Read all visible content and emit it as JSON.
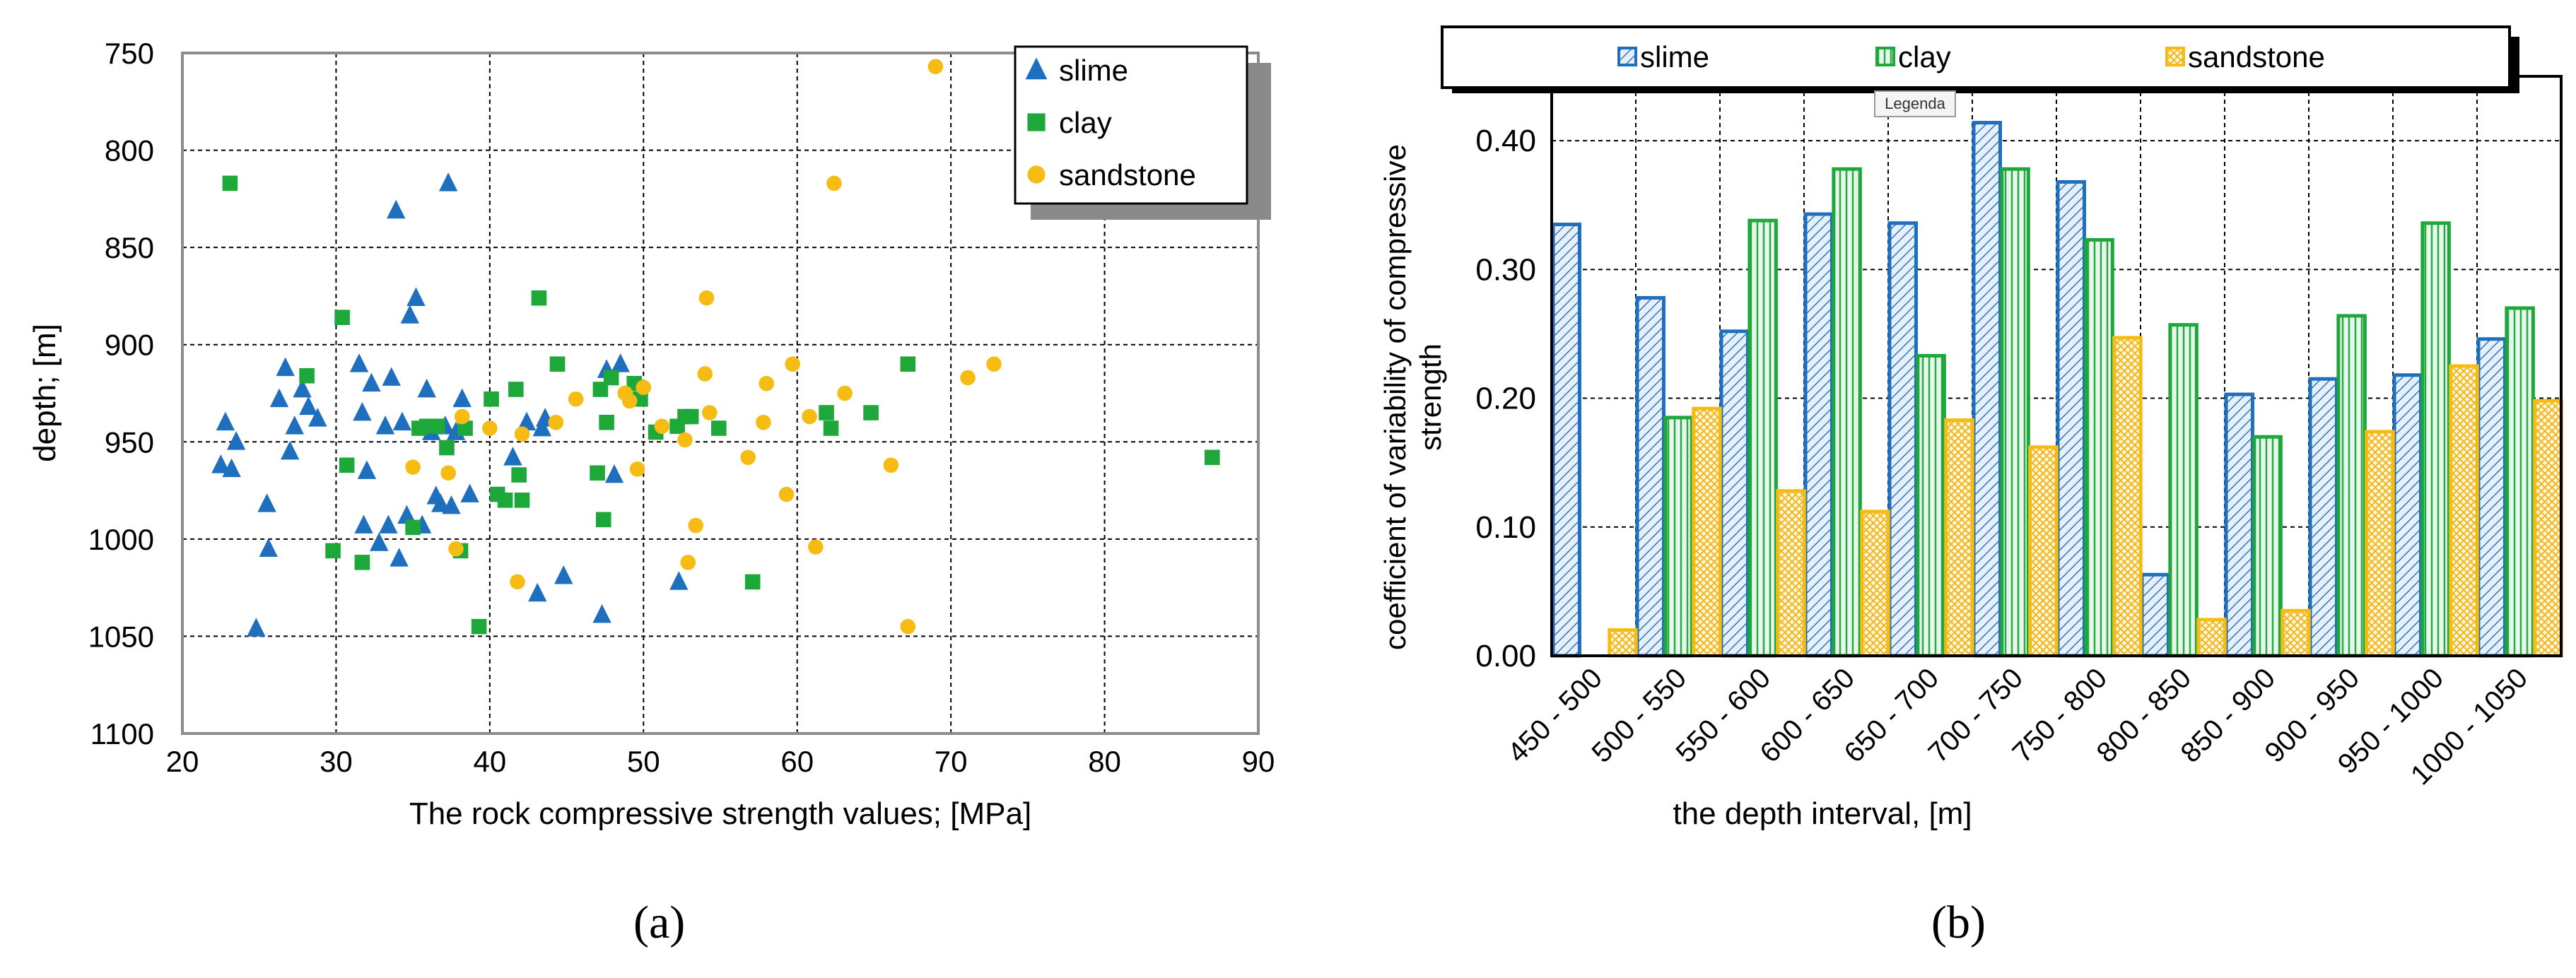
{
  "panel_a": {
    "caption": "(a)",
    "chart_data": {
      "type": "scatter",
      "title": "",
      "xlabel": "The rock compressive strength values; [MPa]",
      "ylabel": "depth; [m]",
      "xlim": [
        20,
        90
      ],
      "ylim": [
        750,
        1100
      ],
      "y_inverted": true,
      "x_ticks": [
        20,
        30,
        40,
        50,
        60,
        70,
        80,
        90
      ],
      "y_ticks": [
        750,
        800,
        850,
        900,
        950,
        1000,
        1050,
        1100
      ],
      "grid": true,
      "legend_position": "top-right",
      "series": [
        {
          "name": "slime",
          "marker": "triangle",
          "color": "#1f6fbf",
          "points": [
            [
              22.5,
              962
            ],
            [
              22.8,
              940
            ],
            [
              23.2,
              964
            ],
            [
              23.5,
              950
            ],
            [
              24.8,
              1046
            ],
            [
              25.5,
              982
            ],
            [
              25.6,
              1005
            ],
            [
              26.3,
              928
            ],
            [
              26.7,
              912
            ],
            [
              27,
              955
            ],
            [
              27.3,
              942
            ],
            [
              27.8,
              923
            ],
            [
              28.2,
              932
            ],
            [
              28.8,
              938
            ],
            [
              31.5,
              910
            ],
            [
              31.7,
              935
            ],
            [
              31.8,
              993
            ],
            [
              32,
              965
            ],
            [
              32.3,
              920
            ],
            [
              32.8,
              1002
            ],
            [
              33.2,
              942
            ],
            [
              33.4,
              993
            ],
            [
              33.6,
              917
            ],
            [
              33.9,
              831
            ],
            [
              34.1,
              1010
            ],
            [
              34.3,
              940
            ],
            [
              34.6,
              988
            ],
            [
              34.8,
              885
            ],
            [
              35.2,
              876
            ],
            [
              35.6,
              993
            ],
            [
              35.9,
              923
            ],
            [
              36.2,
              945
            ],
            [
              36.5,
              978
            ],
            [
              36.8,
              982
            ],
            [
              37.1,
              942
            ],
            [
              37.3,
              817
            ],
            [
              37.5,
              983
            ],
            [
              37.8,
              945
            ],
            [
              38.2,
              928
            ],
            [
              38.7,
              977
            ],
            [
              41.5,
              958
            ],
            [
              42.4,
              940
            ],
            [
              43.1,
              1028
            ],
            [
              43.4,
              943
            ],
            [
              43.6,
              938
            ],
            [
              44.8,
              1019
            ],
            [
              47.3,
              1039
            ],
            [
              47.6,
              913
            ],
            [
              48.1,
              967
            ],
            [
              48.5,
              910
            ],
            [
              52.3,
              1022
            ]
          ]
        },
        {
          "name": "clay",
          "marker": "square",
          "color": "#1ea83a",
          "points": [
            [
              23.1,
              817
            ],
            [
              28.1,
              916
            ],
            [
              29.8,
              1006
            ],
            [
              30.4,
              886
            ],
            [
              30.7,
              962
            ],
            [
              31.7,
              1012
            ],
            [
              35,
              994
            ],
            [
              35.4,
              943
            ],
            [
              35.9,
              942
            ],
            [
              36.6,
              942
            ],
            [
              37.2,
              953
            ],
            [
              38.1,
              1006
            ],
            [
              38.4,
              943
            ],
            [
              39.3,
              1045
            ],
            [
              40.1,
              928
            ],
            [
              40.5,
              977
            ],
            [
              41,
              980
            ],
            [
              41.7,
              923
            ],
            [
              41.9,
              967
            ],
            [
              42.1,
              980
            ],
            [
              43.2,
              876
            ],
            [
              44.4,
              910
            ],
            [
              47,
              966
            ],
            [
              47.2,
              923
            ],
            [
              47.4,
              990
            ],
            [
              47.6,
              940
            ],
            [
              47.9,
              917
            ],
            [
              49.4,
              920
            ],
            [
              49.8,
              928
            ],
            [
              50.8,
              945
            ],
            [
              52.2,
              942
            ],
            [
              52.7,
              937
            ],
            [
              53.1,
              937
            ],
            [
              54.9,
              943
            ],
            [
              57.1,
              1022
            ],
            [
              61.9,
              935
            ],
            [
              62.2,
              943
            ],
            [
              64.8,
              935
            ],
            [
              67.2,
              910
            ],
            [
              87,
              958
            ]
          ]
        },
        {
          "name": "sandstone",
          "marker": "circle",
          "color": "#f6bc13",
          "points": [
            [
              35,
              963
            ],
            [
              37.3,
              966
            ],
            [
              37.8,
              1005
            ],
            [
              38.2,
              937
            ],
            [
              40,
              943
            ],
            [
              41.8,
              1022
            ],
            [
              42.1,
              946
            ],
            [
              44.3,
              940
            ],
            [
              45.6,
              928
            ],
            [
              48.8,
              925
            ],
            [
              49.1,
              929
            ],
            [
              49.6,
              964
            ],
            [
              50,
              922
            ],
            [
              51.2,
              942
            ],
            [
              52.7,
              949
            ],
            [
              52.9,
              1012
            ],
            [
              53.4,
              993
            ],
            [
              54,
              915
            ],
            [
              54.1,
              876
            ],
            [
              54.3,
              935
            ],
            [
              56.8,
              958
            ],
            [
              57.8,
              940
            ],
            [
              58,
              920
            ],
            [
              59.3,
              977
            ],
            [
              59.7,
              910
            ],
            [
              60.8,
              937
            ],
            [
              61.2,
              1004
            ],
            [
              62.4,
              817
            ],
            [
              63.1,
              925
            ],
            [
              66.1,
              962
            ],
            [
              67.2,
              1045
            ],
            [
              69,
              757
            ],
            [
              71.1,
              917
            ],
            [
              72.8,
              910
            ]
          ]
        }
      ]
    }
  },
  "panel_b": {
    "caption": "(b)",
    "tooltip": "Legenda",
    "chart_data": {
      "type": "bar",
      "title": "",
      "xlabel": "the depth  interval, [m]",
      "ylabel_lines": [
        "coefficient of variability of compressive",
        "strength"
      ],
      "ylim": [
        0,
        0.45
      ],
      "y_ticks": [
        "0.00",
        "0.10",
        "0.20",
        "0.30",
        "0.40"
      ],
      "grid": true,
      "legend_position": "top",
      "categories": [
        "450 - 500",
        "500 - 550",
        "550 - 600",
        "600 - 650",
        "650 - 700",
        "700 - 750",
        "750 - 800",
        "800 - 850",
        "850 - 900",
        "900 - 950",
        "950 - 1000",
        "1000 - 1050"
      ],
      "series": [
        {
          "name": "slime",
          "color": "#1f6fbf",
          "values": [
            0.335,
            0.278,
            0.252,
            0.343,
            0.336,
            0.414,
            0.368,
            0.063,
            0.203,
            0.215,
            0.218,
            0.246
          ]
        },
        {
          "name": "clay",
          "color": "#1ea83a",
          "values": [
            0.0,
            0.185,
            0.338,
            0.378,
            0.233,
            0.378,
            0.323,
            0.257,
            0.17,
            0.264,
            0.336,
            0.27
          ]
        },
        {
          "name": "sandstone",
          "color": "#f6bc13",
          "values": [
            0.02,
            0.192,
            0.128,
            0.112,
            0.183,
            0.162,
            0.247,
            0.028,
            0.035,
            0.174,
            0.225,
            0.198
          ]
        }
      ]
    }
  }
}
